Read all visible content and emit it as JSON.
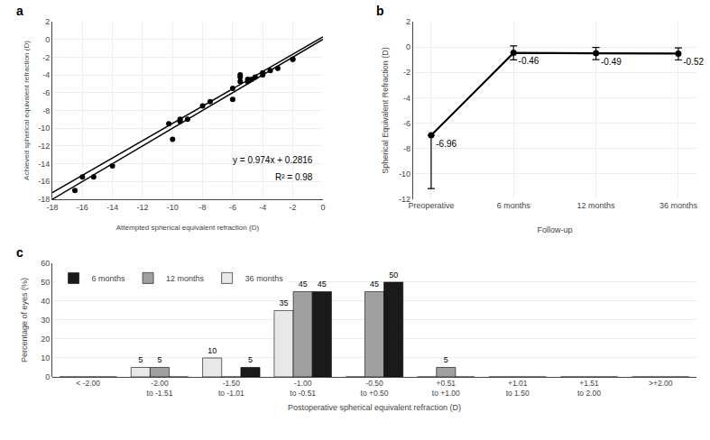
{
  "chart_data": [
    {
      "type": "scatter",
      "panel_label": "a",
      "xlabel": "Attempted spherical equivalent refraction (D)",
      "ylabel": "Achieved spherical equivalent refraction (D)",
      "annotations": [
        "y = 0.974x + 0.2816",
        "R² = 0.98"
      ],
      "series": [
        {
          "type": "scatter",
          "color": "black",
          "marker": "circle",
          "x": [
            -2.0,
            -2.0,
            -3.0,
            -3.5,
            -4.0,
            -4.0,
            -4.5,
            -4.75,
            -5.0,
            -5.0,
            -5.5,
            -5.5,
            -5.5,
            -6.0,
            -6.0,
            -7.5,
            -8.0,
            -9.0,
            -9.5,
            -9.5,
            -10.0,
            -10.25,
            -14.0,
            -15.25,
            -16.0,
            -16.5
          ],
          "values": [
            -2.25,
            -2.25,
            -3.25,
            -3.5,
            -3.75,
            -4.0,
            -4.25,
            -4.5,
            -4.5,
            -4.75,
            -4.75,
            -4.25,
            -4.0,
            -5.5,
            -6.75,
            -7.0,
            -7.5,
            -9.0,
            -9.0,
            -9.25,
            -11.25,
            -9.5,
            -14.25,
            -15.5,
            -15.5,
            -17.0
          ]
        },
        {
          "type": "line",
          "color": "black",
          "line_style": "solid",
          "x": [
            0,
            -18
          ],
          "values": [
            0.2816,
            -17.2504
          ]
        },
        {
          "type": "line",
          "color": "black",
          "line_style": "solid",
          "x": [
            0,
            -18
          ],
          "values": [
            0,
            -18
          ]
        }
      ],
      "xlim": [
        -18,
        0
      ],
      "ylim": [
        -18,
        2
      ],
      "xticks": [
        0,
        -2,
        -4,
        -6,
        -8,
        -10,
        -12,
        -14,
        -16,
        -18
      ],
      "yticks": [
        2,
        0,
        -2,
        -4,
        -6,
        -8,
        -10,
        -12,
        -14,
        -16,
        -18
      ],
      "grid": true
    },
    {
      "type": "line",
      "panel_label": "b",
      "xlabel": "Follow-up",
      "ylabel": "Spherical Equivalent Refraction (D)",
      "categories": [
        "Preoperative",
        "6 months",
        "12 months",
        "36 months"
      ],
      "series": [
        {
          "color": "black",
          "marker": "circle",
          "line_style": "solid",
          "values": [
            -6.96,
            -0.46,
            -0.49,
            -0.52
          ],
          "error_minus": [
            4.2,
            0.55,
            0.5,
            0.5
          ],
          "error_plus": [
            0.0,
            0.55,
            0.45,
            0.45
          ]
        }
      ],
      "data_labels": true,
      "ylim": [
        -12,
        2
      ],
      "yticks": [
        -12,
        -10,
        -8,
        -6,
        -4,
        -2,
        0,
        2
      ],
      "grid": true
    },
    {
      "type": "bar",
      "panel_label": "c",
      "xlabel": "Postoperative spherical equivalent refraction (D)",
      "ylabel": "Percentage of eyes (%)",
      "categories": [
        "< -2.00",
        "-2.00\nto -1.51",
        "-1.50\nto -1.01",
        "-1.00\nto -0.51",
        "-0.50\nto +0.50",
        "+0.51\nto +1.00",
        "+1.01\nto 1.50",
        "+1.51\nto 2.00",
        ">+2.00"
      ],
      "series": [
        {
          "name": "36 months",
          "color": "#e8e8e8",
          "values": [
            0,
            5,
            10,
            35,
            0,
            0,
            0,
            0,
            0
          ],
          "value_labels": [
            null,
            "5",
            "10",
            "35",
            null,
            null,
            null,
            null,
            null
          ]
        },
        {
          "name": "12 months",
          "color": "#a0a0a0",
          "values": [
            0,
            5,
            0,
            45,
            45,
            5,
            0,
            0,
            0
          ],
          "value_labels": [
            null,
            "5",
            null,
            "45",
            "45",
            "5",
            null,
            null,
            null
          ]
        },
        {
          "name": "6 months",
          "color": "#1a1a1a",
          "values": [
            0,
            0,
            5,
            45,
            50,
            0,
            0,
            0,
            0
          ],
          "value_labels": [
            null,
            null,
            "5",
            "45",
            "50",
            null,
            null,
            null,
            null
          ]
        }
      ],
      "data_labels": true,
      "legend": "upper left",
      "ylim": [
        0,
        60
      ],
      "yticks": [
        0,
        10,
        20,
        30,
        40,
        50,
        60
      ],
      "grid": "y"
    }
  ]
}
